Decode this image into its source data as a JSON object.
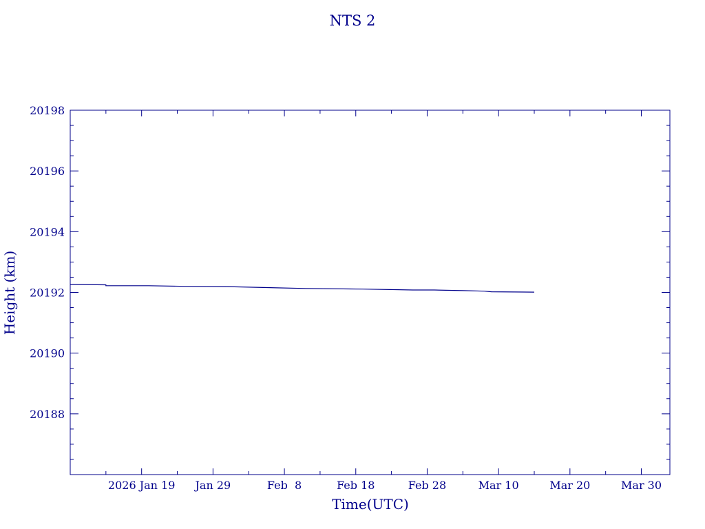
{
  "chart_data": {
    "type": "line",
    "title": "NTS 2",
    "xlabel": "Time(UTC)",
    "ylabel": "Height (km)",
    "x_tick_labels": [
      "2026 Jan 19",
      "Jan 29",
      "Feb  8",
      "Feb 18",
      "Feb 28",
      "Mar 10",
      "Mar 20",
      "Mar 30"
    ],
    "x_tick_dates": [
      "2026-01-19",
      "2026-01-29",
      "2026-02-08",
      "2026-02-18",
      "2026-02-28",
      "2026-03-10",
      "2026-03-20",
      "2026-03-30"
    ],
    "x_minor_tick_dates": [
      "2026-01-14",
      "2026-01-24",
      "2026-02-03",
      "2026-02-13",
      "2026-02-23",
      "2026-03-05",
      "2026-03-15",
      "2026-03-25"
    ],
    "xlim": [
      "2026-01-09",
      "2026-04-03"
    ],
    "y_tick_labels": [
      "20188",
      "20190",
      "20192",
      "20194",
      "20196",
      "20198"
    ],
    "y_ticks": [
      20188,
      20190,
      20192,
      20194,
      20196,
      20198
    ],
    "ylim": [
      20186.0,
      20198.0
    ],
    "series": [
      {
        "color": "#00008b",
        "x": [
          "2026-01-09",
          "2026-01-14",
          "2026-01-14",
          "2026-01-20",
          "2026-01-25",
          "2026-01-31",
          "2026-02-05",
          "2026-02-07",
          "2026-02-11",
          "2026-02-19",
          "2026-02-26",
          "2026-03-01",
          "2026-03-05",
          "2026-03-08",
          "2026-03-09",
          "2026-03-15"
        ],
        "y": [
          20192.26,
          20192.25,
          20192.22,
          20192.22,
          20192.2,
          20192.19,
          20192.16,
          20192.15,
          20192.13,
          20192.11,
          20192.08,
          20192.08,
          20192.06,
          20192.04,
          20192.02,
          20192.01
        ]
      }
    ],
    "grid": false,
    "legend": "none"
  }
}
